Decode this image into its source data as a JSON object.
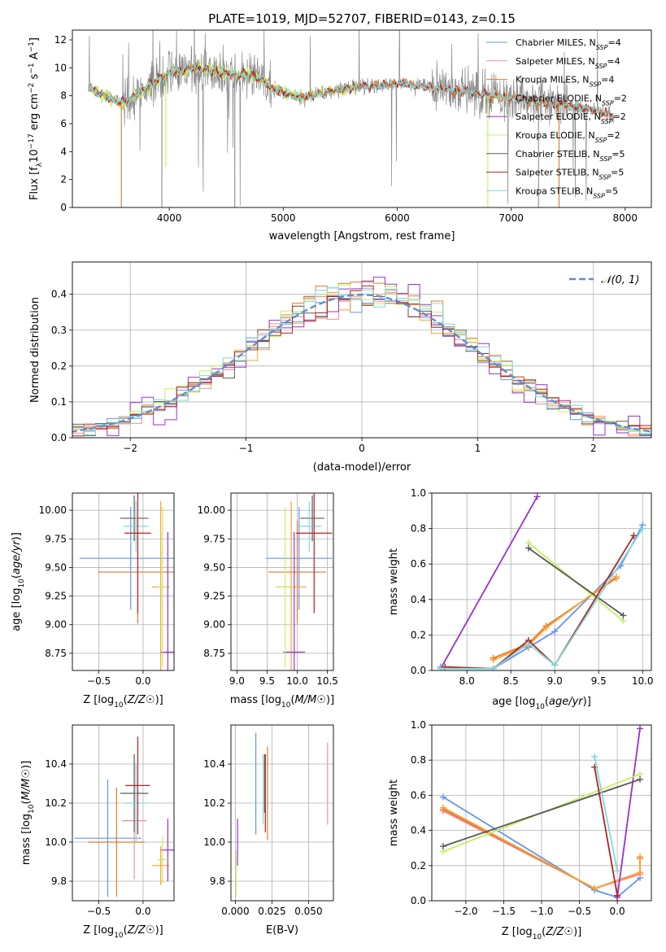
{
  "colors": {
    "chabrier_miles": "#6495ed",
    "salpeter_miles": "#f08fa5",
    "kroupa_miles": "#e07a2c",
    "chabrier_elodie": "#ff9f30",
    "salpeter_elodie": "#9932cc",
    "kroupa_elodie": "#c4f060",
    "chabrier_stelib": "#5a5a5a",
    "salpeter_stelib": "#b22222",
    "kroupa_stelib": "#7fdada",
    "normal": "#5b8fd4",
    "observed_spectrum": "#8a8a8a"
  },
  "legend_models": [
    {
      "key": "chabrier_miles",
      "label": "Chabrier MILES, N",
      "sub": "SSP",
      "eq": "=4"
    },
    {
      "key": "salpeter_miles",
      "label": "Salpeter MILES, N",
      "sub": "SSP",
      "eq": "=4"
    },
    {
      "key": "kroupa_miles",
      "label": "Kroupa MILES, N",
      "sub": "SSP",
      "eq": "=4"
    },
    {
      "key": "chabrier_elodie",
      "label": "Chabrier ELODIE, N",
      "sub": "SSP",
      "eq": "=2"
    },
    {
      "key": "salpeter_elodie",
      "label": "Salpeter ELODIE, N",
      "sub": "SSP",
      "eq": "=2"
    },
    {
      "key": "kroupa_elodie",
      "label": "Kroupa ELODIE, N",
      "sub": "SSP",
      "eq": "=2"
    },
    {
      "key": "chabrier_stelib",
      "label": "Chabrier STELIB, N",
      "sub": "SSP",
      "eq": "=5"
    },
    {
      "key": "salpeter_stelib",
      "label": "Salpeter STELIB, N",
      "sub": "SSP",
      "eq": "=5"
    },
    {
      "key": "kroupa_stelib",
      "label": "Kroupa STELIB, N",
      "sub": "SSP",
      "eq": "=5"
    }
  ],
  "chart_data": [
    {
      "id": "spectrum",
      "type": "line",
      "title": "PLATE=1019, MJD=52707, FIBERID=0143, z=0.15",
      "xlabel": "wavelength [Angstrom, rest frame]",
      "ylabel_parts": [
        "Flux [f",
        "λ",
        "10",
        "−17",
        " erg cm",
        "−2",
        " s",
        "−1",
        " A",
        "−1",
        "]"
      ],
      "xlim": [
        3150,
        8230
      ],
      "ylim": [
        0,
        12.7
      ],
      "xticks": [
        4000,
        5000,
        6000,
        7000,
        8000
      ],
      "yticks": [
        0,
        2,
        4,
        6,
        8,
        10,
        12
      ],
      "grid": false,
      "legend_position": "top-right",
      "continuum_nodes": {
        "x": [
          3300,
          3400,
          3500,
          3600,
          3700,
          3800,
          3900,
          4000,
          4100,
          4200,
          4300,
          4400,
          4500,
          4600,
          4700,
          4800,
          4900,
          5000,
          5100,
          5200,
          5300,
          5400,
          5500,
          5600,
          5700,
          5800,
          5900,
          6000,
          6100,
          6200,
          6300,
          6400,
          6500,
          6600,
          6700,
          6800,
          6900,
          7000,
          7100,
          7200,
          7300,
          7400,
          7500,
          7600,
          7700,
          7800,
          7900
        ],
        "y": [
          8.6,
          8.1,
          7.7,
          7.5,
          8.0,
          8.6,
          9.1,
          9.6,
          9.8,
          10.0,
          9.9,
          9.7,
          9.6,
          9.5,
          9.5,
          9.2,
          8.5,
          8.2,
          8.0,
          7.9,
          8.1,
          8.3,
          8.5,
          8.6,
          8.7,
          8.7,
          8.8,
          8.9,
          8.8,
          8.7,
          8.6,
          8.5,
          8.4,
          8.3,
          8.1,
          8.0,
          7.9,
          7.8,
          7.7,
          7.6,
          7.5,
          7.4,
          7.3,
          7.2,
          7.0,
          6.8,
          6.6
        ]
      },
      "absorption_lines": [
        {
          "x": 3580,
          "y": 0
        },
        {
          "x": 3935,
          "y": 0
        },
        {
          "x": 3970,
          "y": 2.9
        },
        {
          "x": 4575,
          "y": 0
        },
        {
          "x": 6795,
          "y": 0
        },
        {
          "x": 7240,
          "y": 0
        },
        {
          "x": 7420,
          "y": 0
        }
      ]
    },
    {
      "id": "residuals",
      "type": "histogram",
      "xlabel": "(data-model)/error",
      "ylabel": "Normed distribution",
      "xlim": [
        -2.5,
        2.5
      ],
      "ylim": [
        0,
        0.49
      ],
      "xticks": [
        -2,
        -1,
        0,
        1,
        2
      ],
      "yticks": [
        0.0,
        0.1,
        0.2,
        0.3,
        0.4
      ],
      "grid": true,
      "bin_width": 0.1,
      "legend": "𝒩(0, 1)",
      "legend_position": "top-right"
    },
    {
      "id": "age_vs_Z",
      "type": "errorbar",
      "xlabel": "Z [log10(Z/Z☉)]",
      "ylabel": "age  [log10(age/yr)]",
      "xlim": [
        -0.8,
        0.35
      ],
      "ylim": [
        8.6,
        10.15
      ],
      "xticks": [
        -0.5,
        0.0
      ],
      "yticks": [
        8.75,
        9.0,
        9.25,
        9.5,
        9.75,
        10.0
      ],
      "grid": true,
      "points": [
        {
          "key": "chabrier_miles",
          "x": -0.14,
          "xerr": 0.58,
          "y": 9.58,
          "yerr": 0.45
        },
        {
          "key": "kroupa_miles",
          "x": -0.06,
          "xerr": 0.45,
          "y": 9.46,
          "yerr": 0.45
        },
        {
          "key": "chabrier_stelib",
          "x": -0.1,
          "xerr": 0.16,
          "y": 9.93,
          "yerr": 0.2
        },
        {
          "key": "kroupa_stelib",
          "x": -0.08,
          "xerr": 0.14,
          "y": 9.86,
          "yerr": 0.22
        },
        {
          "key": "salpeter_stelib",
          "x": -0.06,
          "xerr": 0.15,
          "y": 9.8,
          "yerr": 0.7
        },
        {
          "key": "chabrier_elodie",
          "x": 0.2,
          "xerr": 0.1,
          "y": 9.33,
          "yerr": 0.75
        },
        {
          "key": "salpeter_elodie",
          "x": 0.28,
          "xerr": 0.08,
          "y": 8.76,
          "yerr": 1.05
        },
        {
          "key": "kroupa_elodie",
          "x": 0.22,
          "xerr": 0.05,
          "y": 9.33,
          "yerr": 0.7
        }
      ]
    },
    {
      "id": "age_vs_mass",
      "type": "errorbar",
      "xlabel": "mass [log10(M/M☉)]",
      "ylabel": "",
      "xlim": [
        8.9,
        10.6
      ],
      "ylim": [
        8.6,
        10.15
      ],
      "xticks": [
        9.0,
        9.5,
        10.0,
        10.5
      ],
      "yticks": [
        8.75,
        9.0,
        9.25,
        9.5,
        9.75,
        10.0
      ],
      "grid": true,
      "points": [
        {
          "key": "chabrier_miles",
          "x": 10.03,
          "xerr": 0.55,
          "y": 9.58,
          "yerr": 0.45
        },
        {
          "key": "kroupa_miles",
          "x": 10.0,
          "xerr": 0.48,
          "y": 9.46,
          "yerr": 0.45
        },
        {
          "key": "chabrier_stelib",
          "x": 10.25,
          "xerr": 0.2,
          "y": 9.93,
          "yerr": 0.2
        },
        {
          "key": "kroupa_stelib",
          "x": 10.2,
          "xerr": 0.2,
          "y": 9.86,
          "yerr": 0.22
        },
        {
          "key": "salpeter_stelib",
          "x": 10.28,
          "xerr": 0.3,
          "y": 9.8,
          "yerr": 0.7
        },
        {
          "key": "chabrier_elodie",
          "x": 9.9,
          "xerr": 0.25,
          "y": 9.33,
          "yerr": 0.75
        },
        {
          "key": "salpeter_elodie",
          "x": 9.95,
          "xerr": 0.18,
          "y": 8.76,
          "yerr": 1.05
        },
        {
          "key": "kroupa_elodie",
          "x": 9.8,
          "xerr": 0.12,
          "y": 9.33,
          "yerr": 0.7
        }
      ]
    },
    {
      "id": "weight_vs_age",
      "type": "line",
      "xlabel": "age  [log10(age/yr)]",
      "ylabel": "mass weight",
      "xlim": [
        7.6,
        10.1
      ],
      "ylim": [
        0,
        1.0
      ],
      "xticks": [
        8.0,
        8.5,
        9.0,
        9.5,
        10.0
      ],
      "yticks": [
        0.0,
        0.2,
        0.4,
        0.6,
        0.8,
        1.0
      ],
      "grid": true,
      "series": [
        {
          "key": "chabrier_miles",
          "x": [
            7.7,
            8.3,
            8.7,
            9.0,
            9.75,
            10.0
          ],
          "y": [
            0.02,
            0.01,
            0.13,
            0.22,
            0.59,
            0.82
          ]
        },
        {
          "key": "kroupa_miles",
          "x": [
            8.3,
            8.7,
            8.9,
            9.7
          ],
          "y": [
            0.07,
            0.15,
            0.25,
            0.52
          ]
        },
        {
          "key": "chabrier_elodie",
          "x": [
            8.3,
            8.7,
            8.9,
            9.7
          ],
          "y": [
            0.06,
            0.14,
            0.24,
            0.53
          ]
        },
        {
          "key": "salpeter_elodie",
          "x": [
            7.7,
            8.8
          ],
          "y": [
            0.01,
            0.98
          ]
        },
        {
          "key": "kroupa_elodie",
          "x": [
            8.7,
            9.78
          ],
          "y": [
            0.72,
            0.28
          ]
        },
        {
          "key": "chabrier_stelib",
          "x": [
            8.7,
            9.78
          ],
          "y": [
            0.69,
            0.31
          ]
        },
        {
          "key": "salpeter_stelib",
          "x": [
            7.75,
            8.3,
            8.7,
            9.0,
            9.9
          ],
          "y": [
            0.02,
            0.01,
            0.17,
            0.03,
            0.76
          ]
        },
        {
          "key": "kroupa_stelib",
          "x": [
            7.7,
            8.3,
            8.7,
            9.0,
            10.0
          ],
          "y": [
            0.01,
            0.01,
            0.15,
            0.03,
            0.8
          ]
        }
      ]
    },
    {
      "id": "mass_vs_Z",
      "type": "errorbar",
      "xlabel": "Z [log10(Z/Z☉)]",
      "ylabel": "mass [log10(M/M☉)]",
      "xlim": [
        -0.8,
        0.35
      ],
      "ylim": [
        9.7,
        10.6
      ],
      "xticks": [
        -0.5,
        0.0
      ],
      "yticks": [
        9.8,
        10.0,
        10.2,
        10.4
      ],
      "grid": true,
      "points": [
        {
          "key": "chabrier_miles",
          "x": -0.4,
          "xerr": 0.38,
          "y": 10.02,
          "yerr": 0.3
        },
        {
          "key": "kroupa_miles",
          "x": -0.3,
          "xerr": 0.32,
          "y": 10.0,
          "yerr": 0.28
        },
        {
          "key": "salpeter_miles",
          "x": -0.1,
          "xerr": 0.14,
          "y": 10.11,
          "yerr": 0.3
        },
        {
          "key": "chabrier_stelib",
          "x": -0.1,
          "xerr": 0.16,
          "y": 10.25,
          "yerr": 0.2
        },
        {
          "key": "kroupa_stelib",
          "x": -0.08,
          "xerr": 0.13,
          "y": 10.2,
          "yerr": 0.2
        },
        {
          "key": "salpeter_stelib",
          "x": -0.06,
          "xerr": 0.14,
          "y": 10.29,
          "yerr": 0.25
        },
        {
          "key": "chabrier_elodie",
          "x": 0.2,
          "xerr": 0.1,
          "y": 9.88,
          "yerr": 0.1
        },
        {
          "key": "salpeter_elodie",
          "x": 0.28,
          "xerr": 0.08,
          "y": 9.96,
          "yerr": 0.16
        },
        {
          "key": "kroupa_elodie",
          "x": 0.22,
          "xerr": 0.06,
          "y": 9.91,
          "yerr": 0.12
        }
      ]
    },
    {
      "id": "mass_vs_ebv",
      "type": "errorbar",
      "xlabel": "E(B-V)",
      "ylabel": "",
      "xlim": [
        -0.003,
        0.067
      ],
      "ylim": [
        9.7,
        10.6
      ],
      "xticks": [
        0.0,
        0.025,
        0.05
      ],
      "yticks": [
        9.8,
        10.0,
        10.2,
        10.4
      ],
      "grid": true,
      "points": [
        {
          "key": "salpeter_elodie",
          "x": 0.0015,
          "y": 10.0,
          "yerr": 0.12
        },
        {
          "key": "kroupa_elodie",
          "x": 0.0005,
          "y": 9.84,
          "yerr": 0.12
        },
        {
          "key": "chabrier_miles",
          "x": 0.014,
          "y": 10.3,
          "yerr": 0.26
        },
        {
          "key": "kroupa_miles",
          "x": 0.022,
          "y": 10.25,
          "yerr": 0.24
        },
        {
          "key": "chabrier_stelib",
          "x": 0.02,
          "y": 10.3,
          "yerr": 0.15
        },
        {
          "key": "salpeter_stelib",
          "x": 0.0205,
          "y": 10.25,
          "yerr": 0.2
        },
        {
          "key": "kroupa_stelib",
          "x": 0.019,
          "y": 10.27,
          "yerr": 0.18
        },
        {
          "key": "salpeter_miles",
          "x": 0.063,
          "y": 10.3,
          "yerr": 0.21
        }
      ]
    },
    {
      "id": "weight_vs_Z",
      "type": "line",
      "xlabel": "Z [log10(Z/Z☉)]",
      "ylabel": "mass weight",
      "xlim": [
        -2.45,
        0.45
      ],
      "ylim": [
        0,
        1.0
      ],
      "xticks": [
        -2.0,
        -1.5,
        -1.0,
        -0.5,
        0.0
      ],
      "yticks": [
        0.0,
        0.2,
        0.4,
        0.6,
        0.8,
        1.0
      ],
      "grid": true,
      "series": [
        {
          "key": "chabrier_miles",
          "x": [
            -2.3,
            -0.3,
            0.0,
            0.3
          ],
          "y": [
            0.59,
            0.06,
            0.02,
            0.13
          ]
        },
        {
          "key": "salpeter_miles",
          "x": [
            -2.3,
            -0.3,
            0.3
          ],
          "y": [
            0.51,
            0.07,
            0.15
          ]
        },
        {
          "key": "kroupa_miles",
          "x": [
            -2.3,
            -0.3,
            0.3,
            0.3
          ],
          "y": [
            0.52,
            0.07,
            0.16,
            0.24
          ]
        },
        {
          "key": "chabrier_elodie",
          "x": [
            -2.3,
            -0.3,
            0.3,
            0.3
          ],
          "y": [
            0.53,
            0.07,
            0.16,
            0.25
          ]
        },
        {
          "key": "salpeter_elodie",
          "x": [
            0.0,
            0.3
          ],
          "y": [
            0.02,
            0.98
          ]
        },
        {
          "key": "kroupa_elodie",
          "x": [
            -2.3,
            0.3
          ],
          "y": [
            0.28,
            0.72
          ]
        },
        {
          "key": "chabrier_stelib",
          "x": [
            -2.3,
            0.3
          ],
          "y": [
            0.31,
            0.69
          ]
        },
        {
          "key": "salpeter_stelib",
          "x": [
            -0.3,
            0.0
          ],
          "y": [
            0.76,
            0.03
          ]
        },
        {
          "key": "kroupa_stelib",
          "x": [
            -0.3,
            0.0
          ],
          "y": [
            0.82,
            0.17
          ]
        }
      ]
    }
  ]
}
